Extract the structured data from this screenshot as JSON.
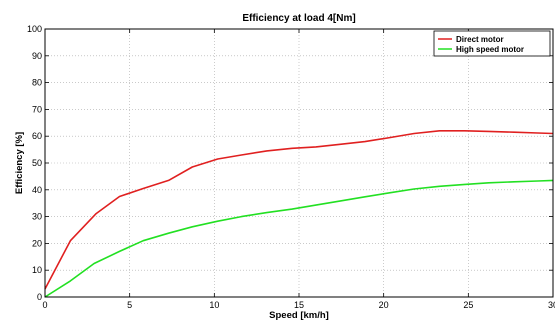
{
  "chart_data": {
    "type": "line",
    "title": "Efficiency at load 4[Nm]",
    "xlabel": "Speed [km/h]",
    "ylabel": "Efficiency [%]",
    "xlim": [
      0,
      30
    ],
    "ylim": [
      0,
      100
    ],
    "xticks": [
      0,
      5,
      10,
      15,
      20,
      25,
      30
    ],
    "yticks": [
      0,
      10,
      20,
      30,
      40,
      50,
      60,
      70,
      80,
      90,
      100
    ],
    "grid": true,
    "legend_position": "top-right",
    "series": [
      {
        "name": "Direct motor",
        "color": "#e02020",
        "x": [
          0,
          1.5,
          3,
          4.4,
          5.8,
          7.3,
          8.7,
          10.2,
          11.6,
          13.1,
          14.6,
          16,
          17.5,
          18.9,
          20.4,
          21.8,
          23.3,
          24.8,
          26.2,
          27.7,
          29.1,
          30
        ],
        "y": [
          3,
          21,
          31,
          37.5,
          40.5,
          43.5,
          48.5,
          51.5,
          53,
          54.5,
          55.5,
          56,
          57,
          58,
          59.5,
          61,
          62,
          62,
          61.8,
          61.5,
          61.2,
          61
        ]
      },
      {
        "name": "High speed motor",
        "color": "#22e022",
        "x": [
          0,
          1.5,
          2.9,
          4.4,
          5.8,
          7.3,
          8.7,
          10.2,
          11.6,
          13.1,
          14.6,
          16,
          17.5,
          18.9,
          20.4,
          21.8,
          23.3,
          24.8,
          26.2,
          27.7,
          29.1,
          30
        ],
        "y": [
          0,
          6,
          12.5,
          17,
          21,
          23.8,
          26.2,
          28.3,
          30,
          31.5,
          32.8,
          34.3,
          35.9,
          37.4,
          38.9,
          40.3,
          41.3,
          42,
          42.6,
          43,
          43.3,
          43.5
        ]
      }
    ]
  }
}
